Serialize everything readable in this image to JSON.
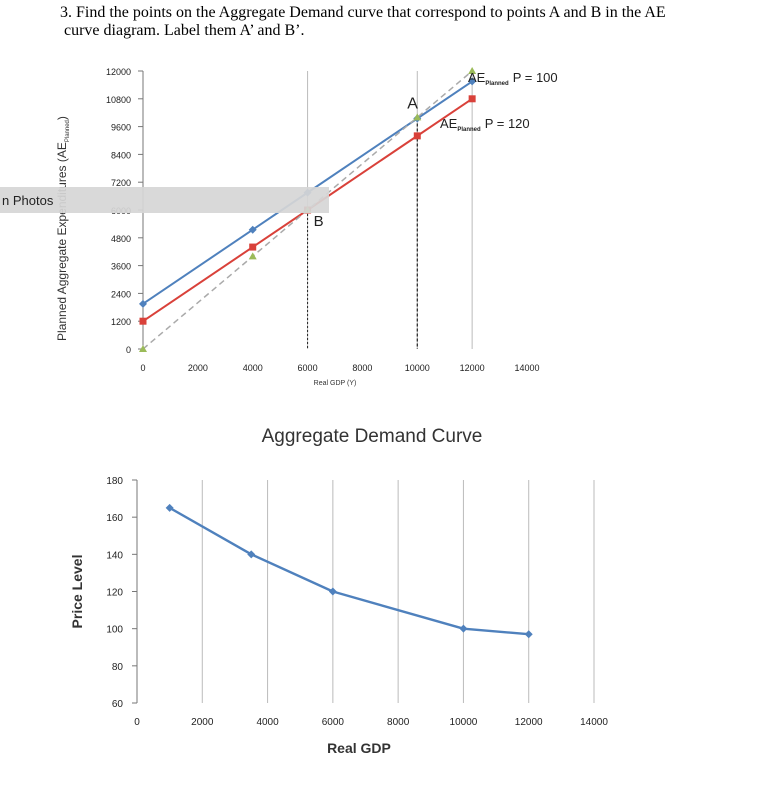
{
  "question": {
    "line1": "3. Find the points on the Aggregate Demand curve that correspond to points A and B in the AE",
    "line2": "curve diagram. Label them A’ and B’."
  },
  "overlay": {
    "photos_label": "n Photos"
  },
  "colors": {
    "blue": "#4f81bd",
    "red": "#d9413a",
    "green": "#9bbb59",
    "dashed": "#aaaaaa",
    "axis": "#777777",
    "grid": "#bbbbbb"
  },
  "chart_data": [
    {
      "type": "line",
      "title": "",
      "xlabel": "Real GDP (Y)",
      "ylabel": "Planned Aggregate Expenditures (AE",
      "ylabel_subscript": "Planned",
      "ylabel_close": ")",
      "xlim": [
        0,
        14000
      ],
      "ylim": [
        0,
        12000
      ],
      "x_ticks": [
        "0",
        "2000",
        "4000",
        "6000",
        "8000",
        "10000",
        "12000",
        "14000"
      ],
      "y_ticks": [
        "0",
        "1200",
        "2400",
        "3600",
        "4800",
        "6000",
        "7200",
        "8400",
        "9600",
        "10800",
        "12000"
      ],
      "gridlines_x": [
        6000,
        10000
      ],
      "series": [
        {
          "name": "AE Planned P = 100",
          "label_main": "AE",
          "label_sub": "Planned",
          "label_price": "P = 100",
          "color": "#4f81bd",
          "x": [
            0,
            4000,
            6000,
            10000,
            12000
          ],
          "y": [
            1950,
            5150,
            6750,
            9950,
            11550
          ]
        },
        {
          "name": "AE Planned P = 120",
          "label_main": "AE",
          "label_sub": "Planned",
          "label_price": "P = 120",
          "color": "#d9413a",
          "x": [
            0,
            4000,
            6000,
            10000,
            12000
          ],
          "y": [
            1200,
            4400,
            6000,
            9200,
            10800
          ]
        },
        {
          "name": "45-degree line",
          "color": "#9bbb59",
          "dashed": true,
          "x": [
            0,
            4000,
            6000,
            10000,
            12000
          ],
          "y": [
            0,
            4000,
            6000,
            10000,
            12000
          ]
        }
      ],
      "annotations": [
        {
          "text": "A",
          "x": 10000,
          "y": 9950
        },
        {
          "text": "B",
          "x": 6000,
          "y": 6000
        }
      ]
    },
    {
      "type": "line",
      "title": "Aggregate Demand Curve",
      "xlabel": "Real GDP",
      "ylabel": "Price Level",
      "xlim": [
        0,
        14000
      ],
      "ylim": [
        60,
        180
      ],
      "x_ticks": [
        "0",
        "2000",
        "4000",
        "6000",
        "8000",
        "10000",
        "12000",
        "14000"
      ],
      "y_ticks": [
        "60",
        "80",
        "100",
        "120",
        "140",
        "160",
        "180"
      ],
      "gridlines_x": [
        2000,
        4000,
        6000,
        8000,
        10000,
        12000,
        14000
      ],
      "series": [
        {
          "color": "#4f81bd",
          "x": [
            1000,
            3500,
            6000,
            10000,
            12000
          ],
          "y": [
            165,
            140,
            120,
            100,
            97
          ]
        }
      ]
    }
  ]
}
